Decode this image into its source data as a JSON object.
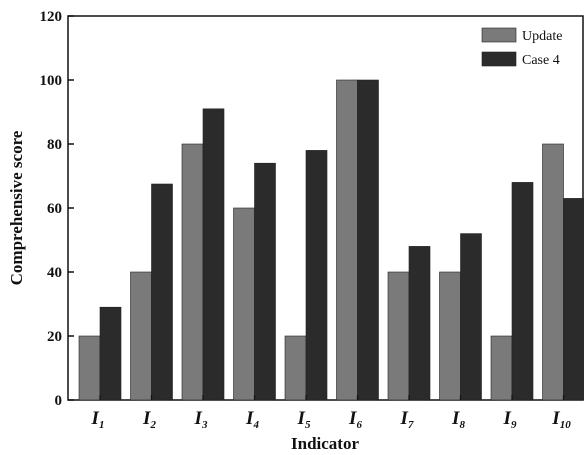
{
  "chart_data": {
    "type": "bar",
    "xlabel": "Indicator",
    "ylabel": "Comprehensive score",
    "ylim": [
      0,
      120
    ],
    "yticks": [
      "0",
      "20",
      "40",
      "60",
      "80",
      "100",
      "120"
    ],
    "categories": [
      {
        "base": "I",
        "sub": "1"
      },
      {
        "base": "I",
        "sub": "2"
      },
      {
        "base": "I",
        "sub": "3"
      },
      {
        "base": "I",
        "sub": "4"
      },
      {
        "base": "I",
        "sub": "5"
      },
      {
        "base": "I",
        "sub": "6"
      },
      {
        "base": "I",
        "sub": "7"
      },
      {
        "base": "I",
        "sub": "8"
      },
      {
        "base": "I",
        "sub": "9"
      },
      {
        "base": "I",
        "sub": "10"
      }
    ],
    "series": [
      {
        "name": "Update",
        "color": "#7a7a7a",
        "values": [
          20,
          40,
          80,
          60,
          20,
          100,
          40,
          40,
          20,
          80
        ]
      },
      {
        "name": "Case 4",
        "color": "#2b2b2b",
        "values": [
          29,
          67.5,
          91,
          74,
          78,
          100,
          48,
          52,
          68,
          63
        ]
      }
    ],
    "legend_position": "top-right",
    "grid": false
  }
}
